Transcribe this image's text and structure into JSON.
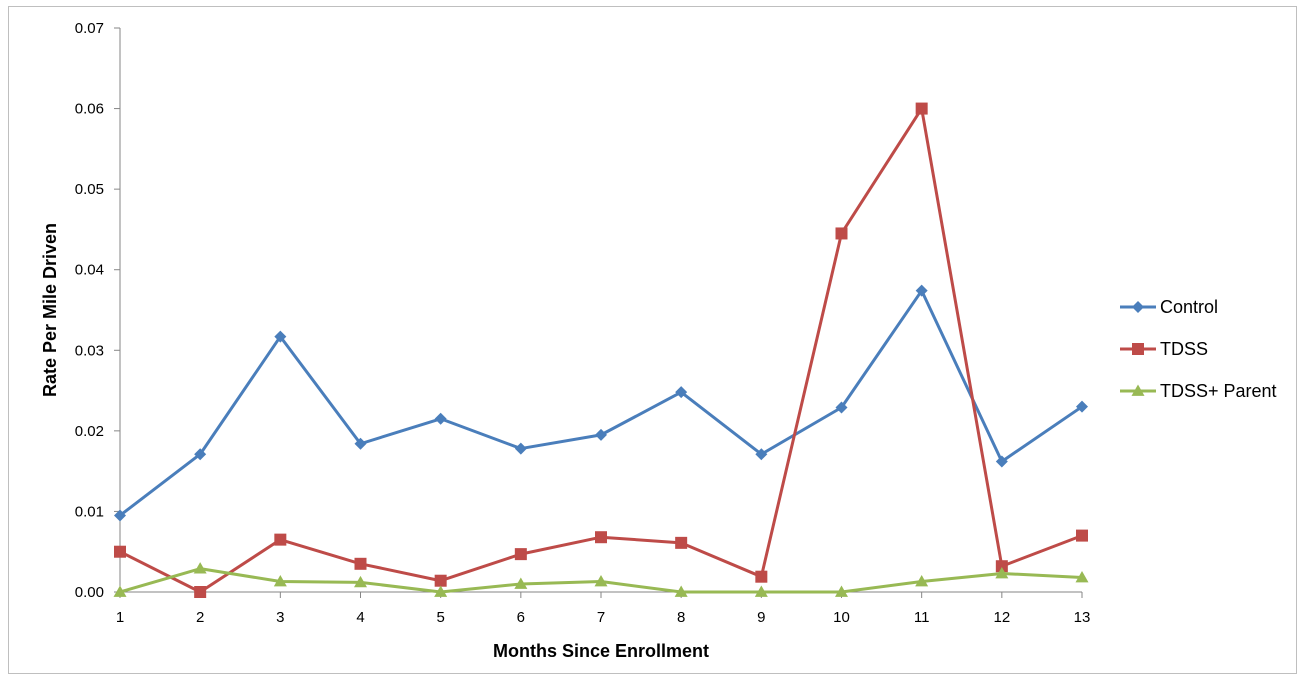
{
  "chart_data": {
    "type": "line",
    "title": "",
    "xlabel": "Months Since Enrollment",
    "ylabel": "Rate Per Mile Driven",
    "categories": [
      "1",
      "2",
      "3",
      "4",
      "5",
      "6",
      "7",
      "8",
      "9",
      "10",
      "11",
      "12",
      "13"
    ],
    "ylim": [
      0,
      0.07
    ],
    "yticks": [
      "0.00",
      "0.01",
      "0.02",
      "0.03",
      "0.04",
      "0.05",
      "0.06",
      "0.07"
    ],
    "grid": false,
    "legend_position": "right",
    "series": [
      {
        "name": "Control",
        "color": "#4a7ebb",
        "marker": "diamond",
        "values": [
          0.0095,
          0.0171,
          0.0317,
          0.0184,
          0.0215,
          0.0178,
          0.0195,
          0.0248,
          0.0171,
          0.0229,
          0.0374,
          0.0162,
          0.023
        ]
      },
      {
        "name": "TDSS",
        "color": "#be4b48",
        "marker": "square",
        "values": [
          0.005,
          0.0,
          0.0065,
          0.0035,
          0.0014,
          0.0047,
          0.0068,
          0.0061,
          0.0019,
          0.0445,
          0.06,
          0.0032,
          0.007
        ]
      },
      {
        "name": "TDSS+ Parent",
        "color": "#98b954",
        "marker": "triangle",
        "values": [
          0.0,
          0.0029,
          0.0013,
          0.0012,
          0.0,
          0.001,
          0.0013,
          0.0,
          0.0,
          0.0,
          0.0013,
          0.0023,
          0.0018
        ]
      }
    ]
  }
}
